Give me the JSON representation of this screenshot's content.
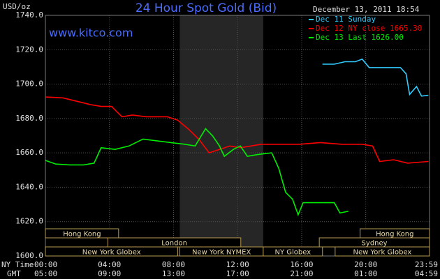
{
  "chart_data": {
    "type": "line",
    "title": "24 Hour Spot Gold (Bid)",
    "timestamp": "December 13, 2011 18:54",
    "y_unit": "USD/oz",
    "watermark": "www.kitco.com",
    "x_row_labels": [
      "NY Time",
      "GMT"
    ],
    "xlim": [
      0,
      23.983
    ],
    "xticks": [
      {
        "value": 0,
        "label": "00:00"
      },
      {
        "value": 4,
        "label": "04:00"
      },
      {
        "value": 8,
        "label": "08:00"
      },
      {
        "value": 12,
        "label": "12:00"
      },
      {
        "value": 16,
        "label": "16:00"
      },
      {
        "value": 20,
        "label": "20:00"
      },
      {
        "value": 23.983,
        "label": "23:59"
      }
    ],
    "x2ticks": [
      {
        "value": 0,
        "label": "05:00"
      },
      {
        "value": 4,
        "label": "09:00"
      },
      {
        "value": 8,
        "label": "13:00"
      },
      {
        "value": 12,
        "label": "17:00"
      },
      {
        "value": 16,
        "label": "21:00"
      },
      {
        "value": 20,
        "label": "01:00"
      },
      {
        "value": 23.983,
        "label": "04:59"
      }
    ],
    "ylim": [
      1600,
      1740
    ],
    "yticks": [
      {
        "value": 1600,
        "label": "1600.0"
      },
      {
        "value": 1620,
        "label": "1620.0"
      },
      {
        "value": 1640,
        "label": "1640.0"
      },
      {
        "value": 1660,
        "label": "1660.0"
      },
      {
        "value": 1680,
        "label": "1680.0"
      },
      {
        "value": 1700,
        "label": "1700.0"
      },
      {
        "value": 1720,
        "label": "1720.0"
      },
      {
        "value": 1740,
        "label": "1740.0"
      }
    ],
    "grid": true,
    "shaded_range": [
      8.39,
      13.6
    ],
    "sessions": [
      [
        {
          "label": "Hong Kong",
          "start": 0,
          "end": 4.57
        },
        {
          "label": "Hong Kong",
          "start": 19.65,
          "end": 23.983
        }
      ],
      [
        {
          "label": "London",
          "start": 3.9,
          "end": 12.2
        },
        {
          "label": "Sydney",
          "start": 17.1,
          "end": 23.983
        }
      ],
      [
        {
          "label": "New York Globex",
          "start": 0,
          "end": 8.26
        },
        {
          "label": "New York NYMEX",
          "start": 8.39,
          "end": 13.6
        },
        {
          "label": "NY Globex",
          "start": 13.6,
          "end": 17.3
        },
        {
          "label": "New York Globex",
          "start": 18.09,
          "end": 23.983
        }
      ]
    ],
    "series": [
      {
        "name": "Dec 11 Sunday",
        "color": "#33ccff",
        "x": [
          17.3,
          18.04,
          18.7,
          19.35,
          19.78,
          20.22,
          21.09,
          22.17,
          22.52,
          22.74,
          23.17,
          23.48,
          23.91
        ],
        "values": [
          1711.6,
          1711.6,
          1713,
          1713,
          1714.5,
          1709.6,
          1709.6,
          1709.6,
          1706,
          1694,
          1698.6,
          1693,
          1693.5
        ]
      },
      {
        "name": "Dec 12 NY close 1665.30",
        "color": "#ff0000",
        "x": [
          0,
          1.09,
          1.96,
          2.83,
          3.48,
          4.13,
          4.78,
          5.43,
          6.3,
          7.61,
          8.26,
          8.91,
          9.57,
          10.22,
          10.87,
          11.52,
          12.17,
          12.83,
          13.48,
          14.57,
          15.87,
          17.17,
          18.48,
          19.78,
          20.43,
          20.87,
          21.74,
          22.61,
          23.91
        ],
        "values": [
          1692.5,
          1692,
          1690,
          1688,
          1687,
          1687,
          1681,
          1682,
          1681,
          1681,
          1679,
          1674,
          1668,
          1660,
          1662,
          1664,
          1663,
          1664,
          1665,
          1665,
          1665,
          1666,
          1665,
          1665,
          1664,
          1655,
          1656,
          1654,
          1655
        ]
      },
      {
        "name": "Dec 13 Last 1626.00",
        "color": "#00ee00",
        "x": [
          0,
          0.65,
          1.52,
          2.39,
          3.04,
          3.48,
          4.35,
          5.22,
          6.09,
          6.96,
          7.83,
          8.7,
          9.35,
          10,
          10.43,
          10.87,
          11.17,
          11.74,
          12.17,
          12.61,
          13.26,
          14.13,
          14.57,
          15,
          15.43,
          15.78,
          16.09,
          17.17,
          18.04,
          18.39,
          18.91
        ],
        "values": [
          1655.6,
          1653.5,
          1653,
          1653,
          1654,
          1663,
          1662,
          1664,
          1668,
          1667,
          1666,
          1665,
          1664,
          1674,
          1670,
          1664,
          1658,
          1662,
          1664,
          1658,
          1659,
          1660,
          1651,
          1637,
          1633,
          1624,
          1631,
          1631,
          1631,
          1625,
          1626
        ]
      }
    ]
  }
}
